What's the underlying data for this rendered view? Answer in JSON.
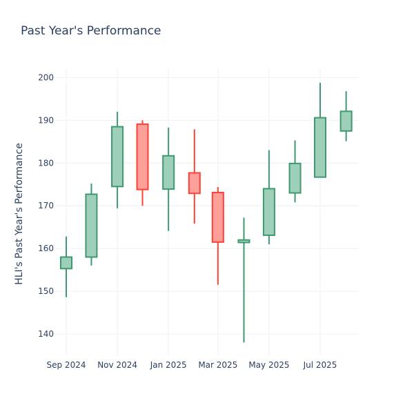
{
  "chart_data": {
    "type": "candlestick",
    "title": "Past Year's Performance",
    "xlabel": "",
    "ylabel": "HLI's Past Year's Performance",
    "ylim": [
      135,
      202
    ],
    "y_ticks": [
      140,
      150,
      160,
      170,
      180,
      190,
      200
    ],
    "x_ticks": [
      "Sep 2024",
      "Nov 2024",
      "Jan 2025",
      "Mar 2025",
      "May 2025",
      "Jul 2025"
    ],
    "grid": true,
    "colors": {
      "increasing": "#3d9970",
      "increasing_fill": "#9ecfb8",
      "decreasing": "#ff4136",
      "decreasing_fill": "#ff9f9a"
    },
    "candles": [
      {
        "date": "2024-09-01",
        "open": 155.3,
        "high": 162.8,
        "low": 148.6,
        "close": 158.0
      },
      {
        "date": "2024-10-01",
        "open": 158.0,
        "high": 175.2,
        "low": 156.0,
        "close": 172.7
      },
      {
        "date": "2024-11-01",
        "open": 174.5,
        "high": 192.0,
        "low": 169.4,
        "close": 188.5
      },
      {
        "date": "2024-12-01",
        "open": 189.1,
        "high": 190.0,
        "low": 170.0,
        "close": 173.8
      },
      {
        "date": "2025-01-01",
        "open": 173.9,
        "high": 188.3,
        "low": 164.1,
        "close": 181.7
      },
      {
        "date": "2025-02-01",
        "open": 177.7,
        "high": 187.9,
        "low": 165.8,
        "close": 172.9
      },
      {
        "date": "2025-03-01",
        "open": 173.1,
        "high": 174.4,
        "low": 151.5,
        "close": 161.5
      },
      {
        "date": "2025-04-01",
        "open": 161.4,
        "high": 167.2,
        "low": 138.0,
        "close": 162.0
      },
      {
        "date": "2025-05-01",
        "open": 163.1,
        "high": 183.0,
        "low": 161.0,
        "close": 174.0
      },
      {
        "date": "2025-06-01",
        "open": 173.0,
        "high": 185.3,
        "low": 170.8,
        "close": 179.9
      },
      {
        "date": "2025-07-01",
        "open": 176.7,
        "high": 198.8,
        "low": 176.7,
        "close": 190.6
      },
      {
        "date": "2025-08-01",
        "open": 187.5,
        "high": 196.8,
        "low": 185.1,
        "close": 192.1
      }
    ]
  }
}
